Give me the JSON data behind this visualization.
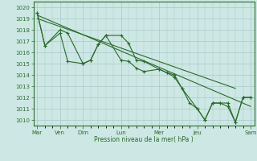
{
  "bg_color": "#cde8e4",
  "grid_color": "#a8c8c8",
  "line_color": "#2a6a2a",
  "ylabel_text": "Pression niveau de la mer( hPa )",
  "ylim": [
    1009.5,
    1020.5
  ],
  "yticks": [
    1010,
    1011,
    1012,
    1013,
    1014,
    1015,
    1016,
    1017,
    1018,
    1019,
    1020
  ],
  "day_x": [
    0,
    3,
    6,
    11,
    16,
    21,
    28
  ],
  "day_labels": [
    "Mar",
    "Ven",
    "Dim",
    "Lun",
    "Mer",
    "Jeu",
    "Sam"
  ],
  "xlim": [
    -0.5,
    28.5
  ],
  "n_minor": 1,
  "series1_x": [
    0,
    1,
    3,
    4,
    6,
    7,
    8,
    9,
    11,
    12,
    13,
    14,
    16,
    17,
    18,
    19,
    20,
    21,
    22,
    23,
    24,
    25,
    26,
    27,
    28
  ],
  "series1_y": [
    1019.5,
    1016.6,
    1018.0,
    1017.7,
    1015.0,
    1015.3,
    1016.7,
    1017.5,
    1017.5,
    1016.8,
    1015.3,
    1015.2,
    1014.5,
    1014.2,
    1014.0,
    1012.8,
    1011.5,
    1011.0,
    1010.0,
    1011.5,
    1011.5,
    1011.2,
    1009.8,
    1012.0,
    1012.0
  ],
  "series2_x": [
    0,
    1,
    3,
    4,
    6,
    7,
    8,
    9,
    11,
    12,
    13,
    14,
    16,
    17,
    18,
    19,
    21,
    22,
    23,
    24,
    25,
    26,
    27,
    28
  ],
  "series2_y": [
    1019.5,
    1016.6,
    1017.7,
    1015.2,
    1015.0,
    1015.3,
    1016.7,
    1017.5,
    1015.3,
    1015.2,
    1014.6,
    1014.3,
    1014.5,
    1014.2,
    1013.8,
    1012.8,
    1011.0,
    1010.0,
    1011.5,
    1011.5,
    1011.5,
    1009.8,
    1012.0,
    1012.0
  ],
  "trend1_x": [
    0,
    28
  ],
  "trend1_y": [
    1019.3,
    1011.2
  ],
  "trend2_x": [
    0,
    26
  ],
  "trend2_y": [
    1019.0,
    1012.8
  ]
}
